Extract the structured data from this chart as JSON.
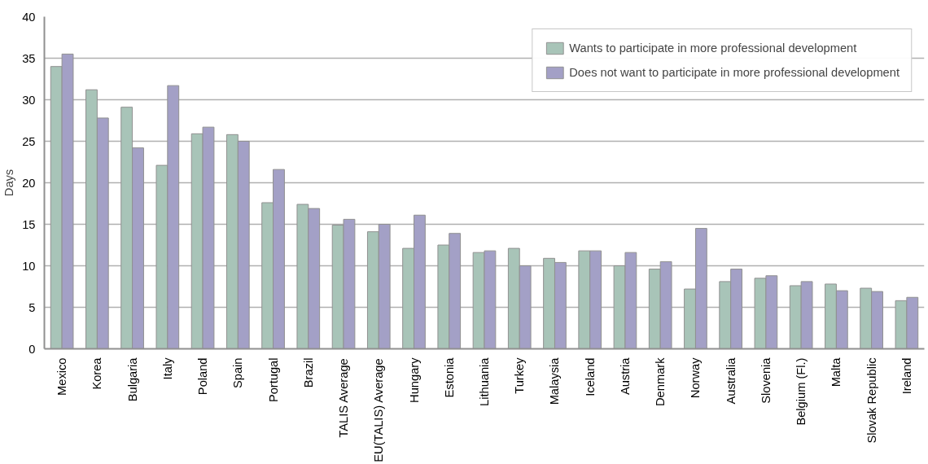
{
  "chart_data": {
    "type": "bar",
    "ylabel": "Days",
    "categories": [
      "Mexico",
      "Korea",
      "Bulgaria",
      "Italy",
      "Poland",
      "Spain",
      "Portugal",
      "Brazil",
      "TALIS Average",
      "EU(TALIS) Average",
      "Hungary",
      "Estonia",
      "Lithuania",
      "Turkey",
      "Malaysia",
      "Iceland",
      "Austria",
      "Denmark",
      "Norway",
      "Australia",
      "Slovenia",
      "Belgium (Fl.)",
      "Malta",
      "Slovak Republic",
      "Ireland"
    ],
    "series": [
      {
        "name": "Wants to participate in more professional development",
        "color": "#a8c4b8",
        "values": [
          34,
          31.2,
          29.1,
          22.1,
          25.9,
          25.8,
          17.6,
          17.4,
          14.9,
          14.1,
          12.1,
          12.5,
          11.6,
          12.1,
          10.9,
          11.8,
          10.0,
          9.6,
          7.2,
          8.1,
          8.5,
          7.6,
          7.8,
          7.3,
          5.8
        ]
      },
      {
        "name": "Does not want to participate in more professional development",
        "color": "#a3a0c6",
        "values": [
          35.5,
          27.8,
          24.2,
          31.7,
          26.7,
          25.0,
          21.6,
          16.9,
          15.6,
          15.0,
          16.1,
          13.9,
          11.8,
          10.0,
          10.4,
          11.8,
          11.6,
          10.5,
          14.5,
          9.6,
          8.8,
          8.1,
          7.0,
          6.9,
          6.2
        ]
      }
    ],
    "ylim": [
      0,
      40
    ],
    "yticks": [
      0,
      5,
      10,
      15,
      20,
      25,
      30,
      35,
      40
    ],
    "grid": "y",
    "legend": "top right"
  }
}
